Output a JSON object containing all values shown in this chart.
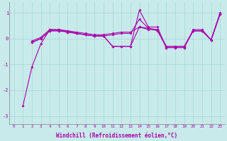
{
  "background_color": "#c8eaea",
  "grid_color": "#a8d8d8",
  "line_color": "#aa00aa",
  "marker": "D",
  "marker_size": 2,
  "xlabel": "Windchill (Refroidissement éolien,°C)",
  "xlabel_color": "#aa00aa",
  "tick_color": "#aa00aa",
  "xlim": [
    -0.5,
    23.5
  ],
  "ylim": [
    -3.3,
    1.4
  ],
  "yticks": [
    -3,
    -2,
    -1,
    0,
    1
  ],
  "xticks": [
    0,
    1,
    2,
    3,
    4,
    5,
    6,
    7,
    8,
    9,
    10,
    11,
    12,
    13,
    14,
    15,
    16,
    17,
    18,
    19,
    20,
    21,
    22,
    23
  ],
  "s1_x": [
    1,
    2,
    3,
    4,
    5,
    6,
    7,
    8,
    9,
    10,
    11,
    12,
    13,
    14,
    15,
    16,
    17,
    18,
    19,
    20,
    21,
    22,
    23
  ],
  "s1_y": [
    -2.6,
    -1.1,
    -0.2,
    0.35,
    0.35,
    0.25,
    0.2,
    0.15,
    0.1,
    0.1,
    0.15,
    0.2,
    0.2,
    0.75,
    0.4,
    0.35,
    -0.35,
    -0.35,
    -0.35,
    0.35,
    0.35,
    -0.05,
    1.0
  ],
  "s2_x": [
    2,
    3,
    4,
    5,
    6,
    7,
    8,
    9,
    10,
    11,
    12,
    13,
    14,
    15,
    16,
    17,
    18,
    19,
    20,
    21,
    22,
    23
  ],
  "s2_y": [
    -0.1,
    0.05,
    0.35,
    0.35,
    0.3,
    0.25,
    0.2,
    0.15,
    0.15,
    0.2,
    0.25,
    0.25,
    0.45,
    0.35,
    0.35,
    -0.3,
    -0.3,
    -0.3,
    0.3,
    0.3,
    -0.05,
    0.95
  ],
  "s3_x": [
    2,
    3,
    4,
    5,
    6,
    7,
    8,
    9,
    10,
    11,
    12,
    13,
    14,
    15,
    16,
    17,
    18,
    19,
    20,
    21,
    22,
    23
  ],
  "s3_y": [
    -0.15,
    0.0,
    0.3,
    0.3,
    0.25,
    0.2,
    0.15,
    0.1,
    0.1,
    -0.3,
    -0.3,
    -0.3,
    1.1,
    0.45,
    0.45,
    -0.35,
    -0.35,
    -0.35,
    0.3,
    0.3,
    -0.05,
    0.95
  ],
  "s4_x": [
    2,
    3,
    4,
    5,
    6,
    7,
    8,
    9,
    10,
    11,
    12,
    13,
    14,
    15,
    16,
    17,
    18,
    19,
    20,
    21,
    22,
    23
  ],
  "s4_y": [
    -0.15,
    0.0,
    0.3,
    0.3,
    0.3,
    0.2,
    0.15,
    0.1,
    0.1,
    -0.3,
    -0.3,
    -0.3,
    0.45,
    0.4,
    0.3,
    -0.3,
    -0.3,
    -0.3,
    0.3,
    0.3,
    -0.05,
    0.95
  ]
}
